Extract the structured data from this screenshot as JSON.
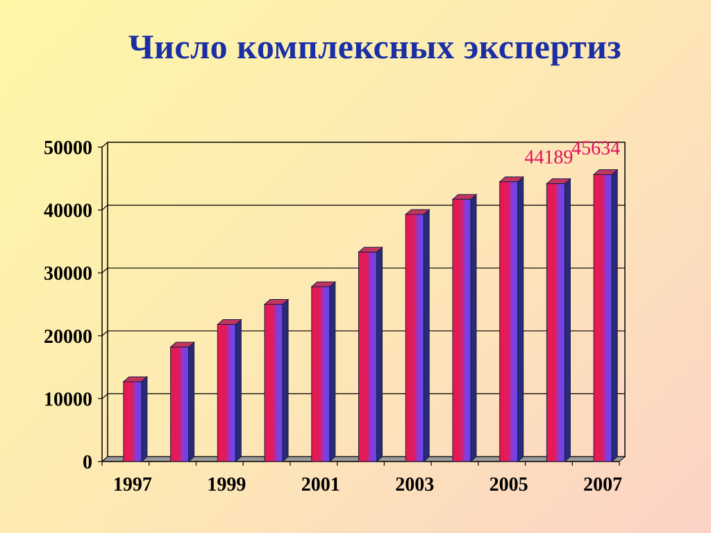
{
  "title": "Число комплексных экспертиз",
  "chart_data": {
    "type": "bar",
    "categories": [
      "1997",
      "1998",
      "1999",
      "2000",
      "2001",
      "2002",
      "2003",
      "2004",
      "2005",
      "2006",
      "2007"
    ],
    "values": [
      12700,
      18200,
      21800,
      25000,
      27800,
      33300,
      39300,
      41700,
      44500,
      44189,
      45634
    ],
    "data_labels": [
      {
        "category": "2006",
        "text": "44189"
      },
      {
        "category": "2007",
        "text": "45634"
      }
    ],
    "x_tick_labels": [
      "1997",
      "1999",
      "2001",
      "2003",
      "2005",
      "2007"
    ],
    "y_ticks": [
      0,
      10000,
      20000,
      30000,
      40000,
      50000
    ],
    "ylim": [
      0,
      50000
    ],
    "title": "Число комплексных экспертиз",
    "xlabel": "",
    "ylabel": "",
    "grid": true,
    "legend": "none",
    "colors": {
      "bar_edge": "#e8194f",
      "bar_center": "#7b3ff0",
      "bar_side": "#2a2a78",
      "bar_top": "#c0365f",
      "grid": "#000000",
      "data_label": "#e0105a",
      "title": "#1a2fa5"
    }
  }
}
